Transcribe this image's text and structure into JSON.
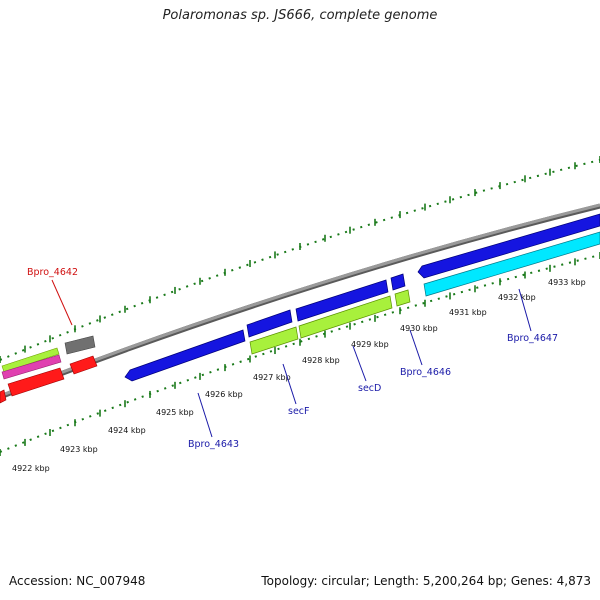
{
  "title": "Polaromonas sp. JS666, complete genome",
  "footer": {
    "accession": "Accession: NC_007948",
    "summary": "Topology: circular; Length: 5,200,264 bp; Genes: 4,873"
  },
  "colors": {
    "backbone": "#8c8c8c",
    "tick": "#1a7a1a",
    "forward_gene": "#1515e0",
    "reverse_gene": "#a8f03c",
    "highlight_gene": "#00e8ff",
    "hit_red": "#ff1a1a",
    "hit_magenta": "#e040b0",
    "hit_gray": "#707070",
    "label_blue": "#1a1aa8",
    "label_red": "#d01010"
  },
  "ruler_labels": [
    "4922 kbp",
    "4923 kbp",
    "4924 kbp",
    "4925 kbp",
    "4926 kbp",
    "4927 kbp",
    "4928 kbp",
    "4929 kbp",
    "4930 kbp",
    "4931 kbp",
    "4932 kbp",
    "4933 kbp"
  ],
  "gene_labels": [
    "Bpro_4642",
    "Bpro_4643",
    "secF",
    "secD",
    "Bpro_4646",
    "Bpro_4647"
  ]
}
